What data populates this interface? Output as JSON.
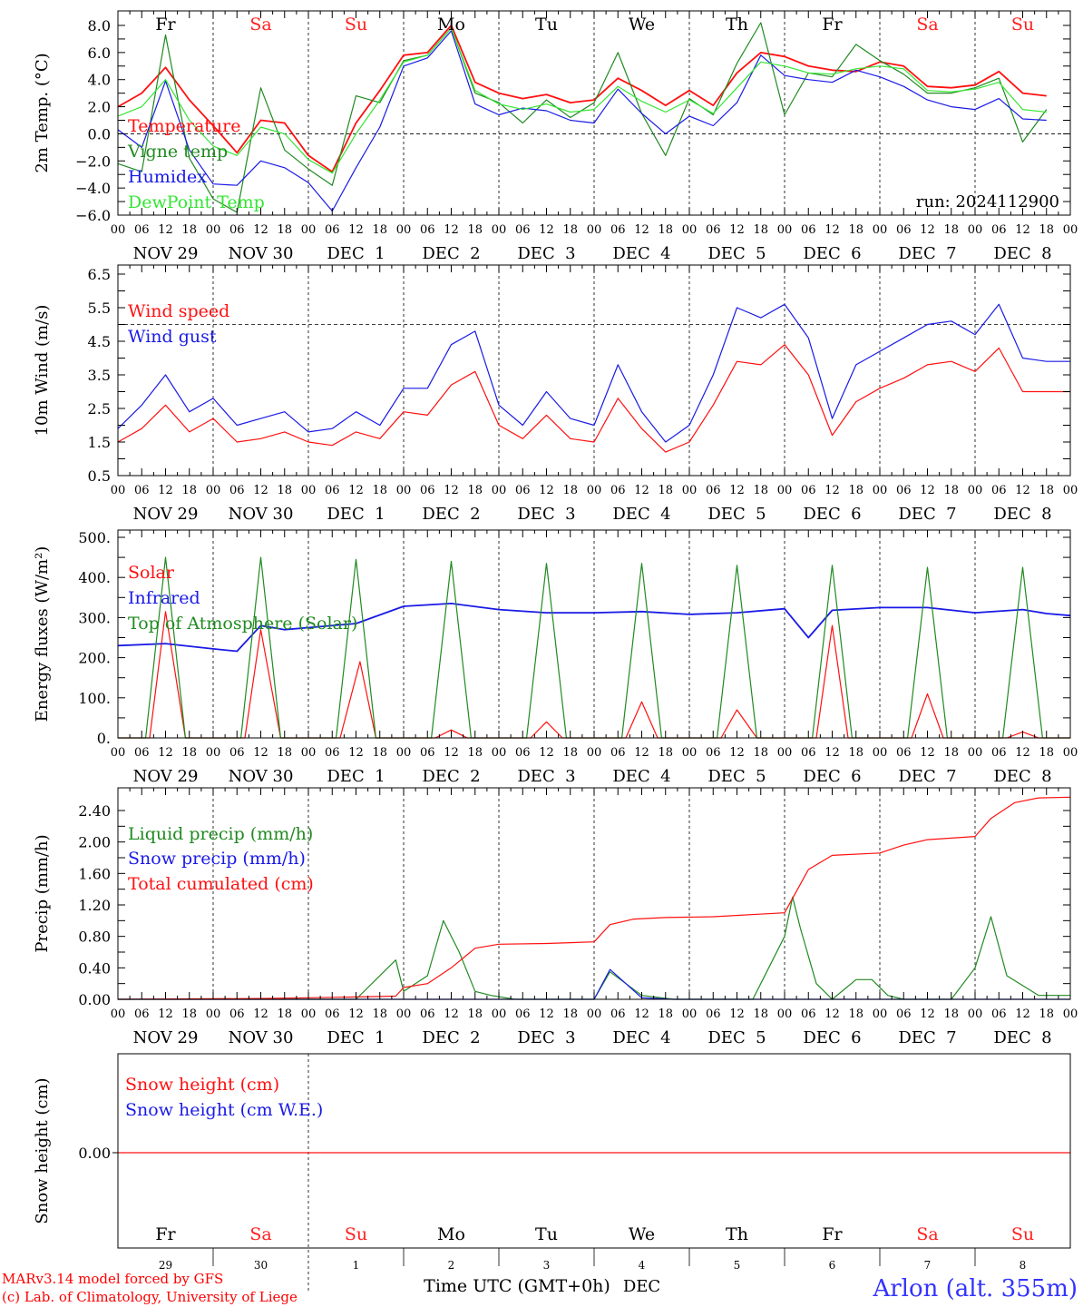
{
  "day_labels": [
    {
      "label": "Fr",
      "color": "#000000"
    },
    {
      "label": "Sa",
      "color": "#ff2020"
    },
    {
      "label": "Su",
      "color": "#ff2020"
    },
    {
      "label": "Mo",
      "color": "#000000"
    },
    {
      "label": "Tu",
      "color": "#000000"
    },
    {
      "label": "We",
      "color": "#000000"
    },
    {
      "label": "Th",
      "color": "#000000"
    },
    {
      "label": "Fr",
      "color": "#000000"
    },
    {
      "label": "Sa",
      "color": "#ff2020"
    },
    {
      "label": "Su",
      "color": "#ff2020"
    }
  ],
  "date_labels": [
    "NOV 29",
    "NOV 30",
    "DEC  1",
    "DEC  2",
    "DEC  3",
    "DEC  4",
    "DEC  5",
    "DEC  6",
    "DEC  7",
    "DEC  8"
  ],
  "hour_labels": [
    "00",
    "06",
    "12",
    "18"
  ],
  "final_hour_label": "00",
  "bottom_day_numbers": [
    "29",
    "30",
    "1",
    "2",
    "3",
    "4",
    "5",
    "6",
    "7",
    "8"
  ],
  "bottom_month": "DEC",
  "xlabel": "Time UTC (GMT+0h)",
  "footer": {
    "line1": "MARv3.14 model forced by GFS",
    "line2": "(c) Lab. of Climatology, University of Liege",
    "station": "Arlon (alt. 355m)"
  },
  "colors": {
    "red": "#ff1010",
    "green": "#208a20",
    "blue": "#1a1ae6",
    "lightgreen": "#33e633",
    "footer_red": "#ff0000",
    "station_blue": "#3333ff"
  },
  "chart_data": [
    {
      "type": "line",
      "ylabel": "2m Temp. (°C)",
      "ylim": [
        -6,
        9
      ],
      "yticks": [
        "8.0",
        "6.0",
        "4.0",
        "2.0",
        "0.0",
        "−2.0",
        "−4.0",
        "−6.0"
      ],
      "yticks_values": [
        8,
        6,
        4,
        2,
        0,
        -2,
        -4,
        -6
      ],
      "reference_line": 0,
      "annotation": "run: 2024112900",
      "x_unit": "hours since NOV 29 00 UTC",
      "series": [
        {
          "name": "Temperature",
          "color": "red",
          "x": [
            0,
            6,
            12,
            18,
            24,
            30,
            36,
            42,
            48,
            54,
            60,
            66,
            72,
            78,
            84,
            90,
            96,
            102,
            108,
            114,
            120,
            126,
            132,
            138,
            144,
            150,
            156,
            162,
            168,
            174,
            180,
            186,
            192,
            198,
            204,
            210,
            216,
            222,
            228,
            234
          ],
          "y": [
            2.0,
            3.0,
            4.9,
            2.5,
            0.6,
            -1.4,
            1.0,
            0.8,
            -1.6,
            -2.8,
            0.8,
            3.2,
            5.8,
            6.0,
            8.0,
            3.8,
            3.0,
            2.6,
            2.9,
            2.3,
            2.5,
            4.1,
            3.2,
            2.1,
            3.2,
            2.1,
            4.5,
            6.0,
            5.7,
            5.0,
            4.7,
            4.6,
            5.3,
            5.0,
            3.5,
            3.4,
            3.6,
            4.6,
            3.0,
            2.8
          ]
        },
        {
          "name": "Vigne temp",
          "color": "green",
          "x": [
            0,
            6,
            12,
            18,
            24,
            30,
            36,
            42,
            48,
            54,
            60,
            66,
            72,
            78,
            84,
            90,
            96,
            102,
            108,
            114,
            120,
            126,
            132,
            138,
            144,
            150,
            156,
            162,
            168,
            174,
            180,
            186,
            192,
            198,
            204,
            210,
            216,
            222,
            228,
            234
          ],
          "y": [
            -2.2,
            -2.8,
            7.3,
            -1.8,
            -4.8,
            -5.8,
            3.4,
            -1.2,
            -2.6,
            -3.8,
            2.8,
            2.3,
            5.4,
            5.8,
            7.8,
            3.0,
            2.3,
            0.8,
            2.5,
            1.2,
            2.3,
            6.0,
            1.5,
            -1.6,
            2.6,
            1.4,
            5.2,
            8.2,
            1.4,
            4.5,
            4.2,
            6.6,
            5.4,
            4.4,
            3.0,
            3.0,
            3.4,
            4.1,
            -0.6,
            1.8
          ]
        },
        {
          "name": "Humidex",
          "color": "blue",
          "x": [
            0,
            6,
            12,
            18,
            24,
            30,
            36,
            42,
            48,
            54,
            60,
            66,
            72,
            78,
            84,
            90,
            96,
            102,
            108,
            114,
            120,
            126,
            132,
            138,
            144,
            150,
            156,
            162,
            168,
            174,
            180,
            186,
            192,
            198,
            204,
            210,
            216,
            222,
            228,
            234
          ],
          "y": [
            0.3,
            -1.0,
            3.9,
            -1.2,
            -3.7,
            -3.8,
            -2.0,
            -2.5,
            -3.6,
            -5.7,
            -2.5,
            0.5,
            5.0,
            5.6,
            7.6,
            2.2,
            1.4,
            1.9,
            1.7,
            1.0,
            0.8,
            3.3,
            1.5,
            0.0,
            1.3,
            0.6,
            2.3,
            5.8,
            4.3,
            4.0,
            3.8,
            4.7,
            4.2,
            3.5,
            2.5,
            2.0,
            1.8,
            2.6,
            1.1,
            1.0
          ]
        },
        {
          "name": "DewPoint Temp",
          "color": "lightgreen",
          "x": [
            0,
            6,
            12,
            18,
            24,
            30,
            36,
            42,
            48,
            54,
            60,
            66,
            72,
            78,
            84,
            90,
            96,
            102,
            108,
            114,
            120,
            126,
            132,
            138,
            144,
            150,
            156,
            162,
            168,
            174,
            180,
            186,
            192,
            198,
            204,
            210,
            216,
            222,
            228,
            234
          ],
          "y": [
            1.3,
            2.0,
            4.0,
            1.0,
            -0.9,
            -1.6,
            0.5,
            0.0,
            -1.9,
            -2.9,
            0.0,
            2.5,
            5.3,
            5.8,
            7.8,
            3.2,
            2.2,
            1.8,
            2.2,
            1.6,
            1.8,
            3.5,
            2.4,
            1.6,
            2.5,
            1.5,
            3.4,
            5.3,
            5.0,
            4.5,
            4.4,
            4.8,
            5.0,
            4.8,
            3.2,
            3.1,
            3.3,
            3.8,
            1.8,
            1.6
          ]
        }
      ]
    },
    {
      "type": "line",
      "ylabel": "10m Wind (m/s)",
      "ylim": [
        0.5,
        6.5
      ],
      "yticks": [
        "6.5",
        "5.5",
        "4.5",
        "3.5",
        "2.5",
        "1.5",
        "0.5"
      ],
      "yticks_values": [
        6.5,
        5.5,
        4.5,
        3.5,
        2.5,
        1.5,
        0.5
      ],
      "reference_line": 5.0,
      "series": [
        {
          "name": "Wind speed",
          "color": "red",
          "x": [
            0,
            6,
            12,
            18,
            24,
            30,
            36,
            42,
            48,
            54,
            60,
            66,
            72,
            78,
            84,
            90,
            96,
            102,
            108,
            114,
            120,
            126,
            132,
            138,
            144,
            150,
            156,
            162,
            168,
            174,
            180,
            186,
            192,
            198,
            204,
            210,
            216,
            222,
            228,
            234,
            240
          ],
          "y": [
            1.5,
            1.9,
            2.6,
            1.8,
            2.2,
            1.5,
            1.6,
            1.8,
            1.5,
            1.4,
            1.8,
            1.6,
            2.4,
            2.3,
            3.2,
            3.6,
            2.0,
            1.6,
            2.3,
            1.6,
            1.5,
            2.8,
            1.9,
            1.2,
            1.5,
            2.6,
            3.9,
            3.8,
            4.4,
            3.5,
            1.7,
            2.7,
            3.1,
            3.4,
            3.8,
            3.9,
            3.6,
            4.3,
            3.0,
            3.0,
            3.0
          ]
        },
        {
          "name": "Wind gust",
          "color": "blue",
          "x": [
            0,
            6,
            12,
            18,
            24,
            30,
            36,
            42,
            48,
            54,
            60,
            66,
            72,
            78,
            84,
            90,
            96,
            102,
            108,
            114,
            120,
            126,
            132,
            138,
            144,
            150,
            156,
            162,
            168,
            174,
            180,
            186,
            192,
            198,
            204,
            210,
            216,
            222,
            228,
            234,
            240
          ],
          "y": [
            1.9,
            2.6,
            3.5,
            2.4,
            2.8,
            2.0,
            2.2,
            2.4,
            1.8,
            1.9,
            2.4,
            2.0,
            3.1,
            3.1,
            4.4,
            4.8,
            2.6,
            2.0,
            3.0,
            2.2,
            2.0,
            3.8,
            2.4,
            1.5,
            2.0,
            3.5,
            5.5,
            5.2,
            5.6,
            4.6,
            2.2,
            3.8,
            4.2,
            4.6,
            5.0,
            5.1,
            4.7,
            5.6,
            4.0,
            3.9,
            3.9
          ]
        }
      ]
    },
    {
      "type": "line",
      "ylabel": "Energy fluxes (W/m²)",
      "ylim": [
        0,
        500
      ],
      "yticks": [
        "500.",
        "400.",
        "300.",
        "200.",
        "100.",
        "0."
      ],
      "yticks_values": [
        500,
        400,
        300,
        200,
        100,
        0
      ],
      "series": [
        {
          "name": "Solar",
          "color": "red",
          "x": [
            0,
            8,
            12,
            17,
            24,
            32,
            36,
            41,
            48,
            56,
            61,
            65,
            72,
            80,
            84,
            88,
            96,
            104,
            108,
            112,
            120,
            128,
            132,
            136,
            144,
            152,
            156,
            161,
            168,
            176,
            180,
            184,
            192,
            200,
            204,
            208,
            216,
            224,
            228,
            232,
            240
          ],
          "y": [
            0,
            0,
            315,
            0,
            0,
            0,
            270,
            0,
            0,
            0,
            190,
            0,
            0,
            0,
            20,
            0,
            0,
            0,
            40,
            0,
            0,
            0,
            90,
            0,
            0,
            0,
            70,
            0,
            0,
            0,
            280,
            0,
            0,
            0,
            110,
            0,
            0,
            0,
            15,
            0,
            0
          ]
        },
        {
          "name": "Infrared",
          "color": "blue",
          "x": [
            0,
            12,
            24,
            30,
            36,
            42,
            48,
            60,
            72,
            84,
            96,
            108,
            120,
            132,
            144,
            156,
            168,
            174,
            180,
            192,
            204,
            216,
            228,
            234,
            240
          ],
          "y": [
            230,
            235,
            222,
            216,
            280,
            270,
            275,
            285,
            328,
            335,
            320,
            312,
            312,
            315,
            308,
            312,
            322,
            250,
            318,
            325,
            325,
            312,
            320,
            310,
            305
          ]
        },
        {
          "name": "Top of Atmosphere (Solar)",
          "color": "green",
          "x": [
            0,
            7,
            12,
            17,
            24,
            31,
            36,
            41,
            48,
            55,
            60,
            65,
            72,
            79,
            84,
            89,
            96,
            103,
            108,
            113,
            120,
            127,
            132,
            137,
            144,
            151,
            156,
            161,
            168,
            175,
            180,
            185,
            192,
            199,
            204,
            209,
            216,
            223,
            228,
            233,
            240
          ],
          "y": [
            0,
            0,
            450,
            0,
            0,
            0,
            450,
            0,
            0,
            0,
            445,
            0,
            0,
            0,
            440,
            0,
            0,
            0,
            435,
            0,
            0,
            0,
            435,
            0,
            0,
            0,
            430,
            0,
            0,
            0,
            430,
            0,
            0,
            0,
            425,
            0,
            0,
            0,
            425,
            0,
            0
          ]
        }
      ]
    },
    {
      "type": "line",
      "ylabel": "Precip (mm/h)",
      "ylim": [
        0,
        2.6
      ],
      "yticks": [
        "2.40",
        "2.00",
        "1.60",
        "1.20",
        "0.80",
        "0.40",
        "0.00"
      ],
      "yticks_values": [
        2.4,
        2.0,
        1.6,
        1.2,
        0.8,
        0.4,
        0.0
      ],
      "series": [
        {
          "name": "Liquid precip (mm/h)",
          "color": "green",
          "x": [
            0,
            60,
            70,
            72,
            78,
            82,
            86,
            90,
            94,
            100,
            120,
            124,
            128,
            132,
            140,
            160,
            168,
            170,
            172,
            176,
            180,
            186,
            190,
            194,
            198,
            210,
            216,
            220,
            224,
            232,
            240
          ],
          "y": [
            0,
            0,
            0.5,
            0.1,
            0.3,
            1.0,
            0.6,
            0.1,
            0.05,
            0,
            0,
            0.35,
            0.2,
            0.05,
            0,
            0,
            0.8,
            1.3,
            0.9,
            0.2,
            0,
            0.25,
            0.25,
            0.05,
            0,
            0,
            0.4,
            1.05,
            0.3,
            0.05,
            0.05
          ]
        },
        {
          "name": "Snow precip (mm/h)",
          "color": "blue",
          "x": [
            0,
            120,
            124,
            128,
            132,
            140,
            240
          ],
          "y": [
            0,
            0,
            0.38,
            0.2,
            0.02,
            0,
            0
          ]
        },
        {
          "name": "Total cumulated (cm)",
          "color": "red",
          "x": [
            0,
            36,
            48,
            60,
            70,
            72,
            78,
            84,
            90,
            96,
            108,
            120,
            124,
            130,
            138,
            150,
            168,
            174,
            180,
            192,
            198,
            204,
            216,
            220,
            226,
            232,
            240
          ],
          "y": [
            0,
            0.01,
            0.02,
            0.03,
            0.04,
            0.15,
            0.2,
            0.4,
            0.65,
            0.7,
            0.71,
            0.73,
            0.95,
            1.02,
            1.04,
            1.05,
            1.1,
            1.65,
            1.83,
            1.86,
            1.96,
            2.03,
            2.07,
            2.3,
            2.5,
            2.56,
            2.57
          ]
        }
      ]
    },
    {
      "type": "line",
      "ylabel": "Snow height (cm)",
      "ylim": [
        -1,
        1
      ],
      "yticks": [
        "0.00"
      ],
      "yticks_values": [
        0
      ],
      "series": [
        {
          "name": "Snow height (cm)",
          "color": "red",
          "x": [
            0,
            240
          ],
          "y": [
            0,
            0
          ]
        },
        {
          "name": "Snow height (cm W.E.)",
          "color": "blue",
          "x": [],
          "y": []
        }
      ]
    }
  ]
}
